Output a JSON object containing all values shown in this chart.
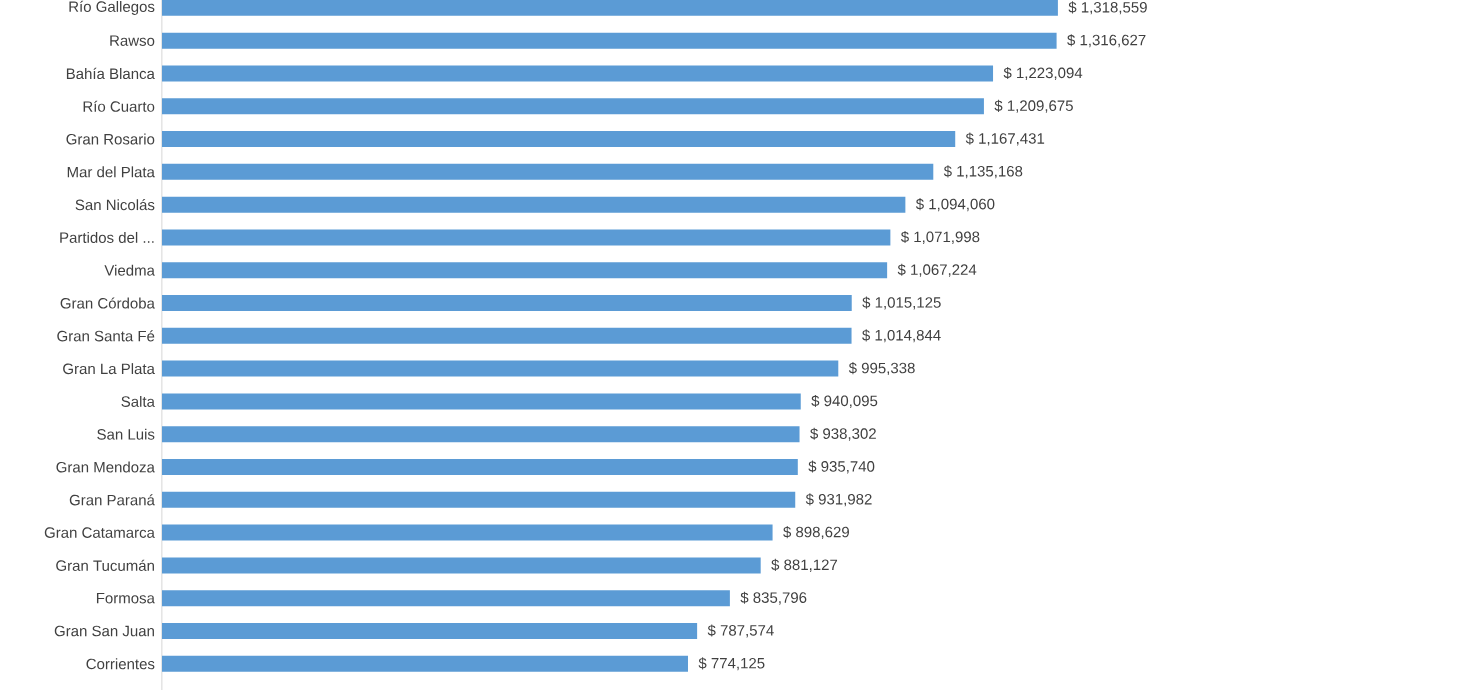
{
  "chart_data": {
    "type": "bar",
    "orientation": "horizontal",
    "tick_labels": "y",
    "color": "#5b9bd5",
    "categories": [
      "Río Gallegos",
      "Rawso",
      "Bahía Blanca",
      "Río Cuarto",
      "Gran Rosario",
      "Mar del Plata",
      "San Nicolás",
      "Partidos del ...",
      "Viedma",
      "Gran Córdoba",
      "Gran Santa Fé",
      "Gran La Plata",
      "Salta",
      "San Luis",
      "Gran Mendoza",
      "Gran Paraná",
      "Gran Catamarca",
      "Gran Tucumán",
      "Formosa",
      "Gran San Juan",
      "Corrientes"
    ],
    "values": [
      1318559,
      1316627,
      1223094,
      1209675,
      1167431,
      1135168,
      1094060,
      1071998,
      1067224,
      1015125,
      1014844,
      995338,
      940095,
      938302,
      935740,
      931982,
      898629,
      881127,
      835796,
      787574,
      774125
    ],
    "value_labels": [
      "$ 1,318,559",
      "$ 1,316,627",
      "$ 1,223,094",
      "$ 1,209,675",
      "$ 1,167,431",
      "$ 1,135,168",
      "$ 1,094,060",
      "$ 1,071,998",
      "$ 1,067,224",
      "$ 1,015,125",
      "$ 1,014,844",
      "$ 995,338",
      "$ 940,095",
      "$ 938,302",
      "$ 935,740",
      "$ 931,982",
      "$ 898,629",
      "$ 881,127",
      "$ 835,796",
      "$ 787,574",
      "$ 774,125"
    ]
  }
}
